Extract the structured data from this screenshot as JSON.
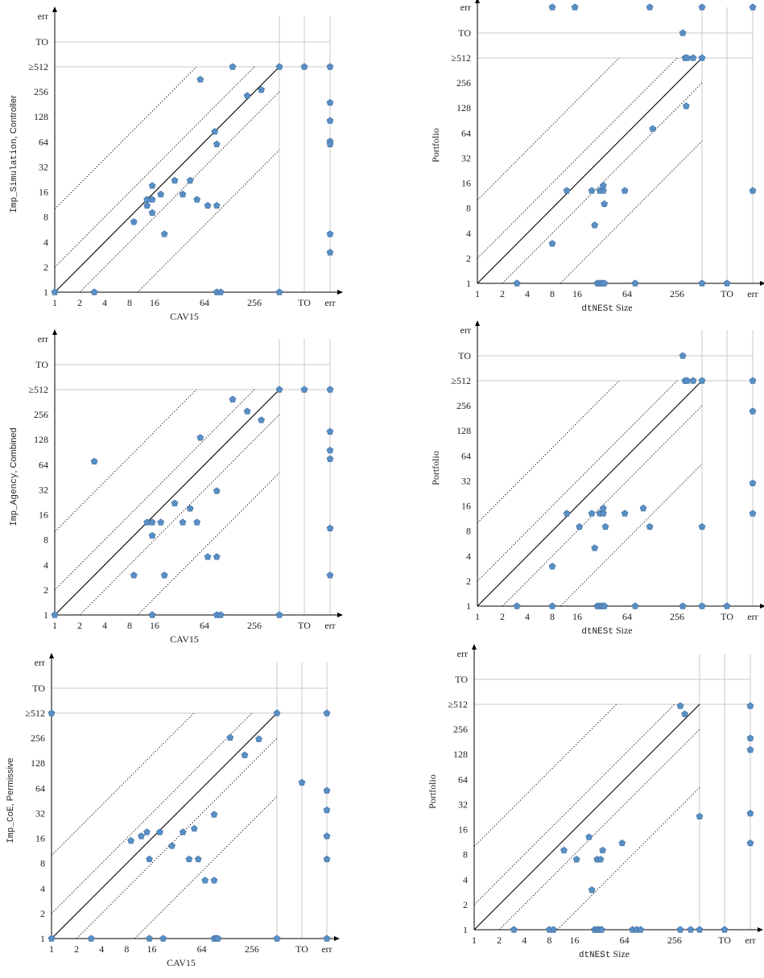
{
  "figure": {
    "common": {
      "tick_labels": [
        "1",
        "2",
        "4",
        "8",
        "16",
        "32",
        "64",
        "128",
        "256",
        "≥512",
        "TO",
        "err"
      ],
      "x_tick_labels": [
        "1",
        "2",
        "4",
        "8",
        "16",
        "64",
        "256",
        "TO",
        "err"
      ],
      "colors": {
        "marker": "#5a8fc6",
        "marker_edge": "#3f6f9f",
        "grid": "#c8c8c8",
        "diagonal": "#000000"
      },
      "marker_shape": "pentagon"
    }
  },
  "chart_data": [
    {
      "type": "scatter",
      "x_scale": "log2",
      "y_scale": "log2",
      "xlim": [
        1,
        1024
      ],
      "ylim": [
        1,
        1024
      ],
      "xlabel": "CAV15",
      "ylabel_parts": [
        {
          "text": "Imp_Simulation",
          "font": "mono"
        },
        {
          "text": ", Controller",
          "font": "sans"
        }
      ],
      "reference_lines": [
        "y = x",
        "y = 2x",
        "y = 10x",
        "y = x/2",
        "y = x/10"
      ],
      "points": [
        {
          "x": 1,
          "y": 1
        },
        {
          "x": 3,
          "y": 1
        },
        {
          "x": 90,
          "y": 1
        },
        {
          "x": 100,
          "y": 1
        },
        {
          "x": 512,
          "y": 1
        },
        {
          "x": 9,
          "y": 7
        },
        {
          "x": 13,
          "y": 11
        },
        {
          "x": 13,
          "y": 13
        },
        {
          "x": 15,
          "y": 13
        },
        {
          "x": 15,
          "y": 9
        },
        {
          "x": 15,
          "y": 19
        },
        {
          "x": 19,
          "y": 15
        },
        {
          "x": 21,
          "y": 5
        },
        {
          "x": 28,
          "y": 22
        },
        {
          "x": 35,
          "y": 15
        },
        {
          "x": 43,
          "y": 22
        },
        {
          "x": 52,
          "y": 13
        },
        {
          "x": 70,
          "y": 11
        },
        {
          "x": 90,
          "y": 11
        },
        {
          "x": 85,
          "y": 85
        },
        {
          "x": 90,
          "y": 60
        },
        {
          "x": 57,
          "y": 360
        },
        {
          "x": 140,
          "y": 512
        },
        {
          "x": 210,
          "y": 230
        },
        {
          "x": 310,
          "y": 270
        },
        {
          "x": 512,
          "y": 512
        },
        {
          "x": "TO",
          "y": 512
        },
        {
          "x": "err",
          "y": 512
        },
        {
          "x": "err",
          "y": 190
        },
        {
          "x": "err",
          "y": 115
        },
        {
          "x": "err",
          "y": 65
        },
        {
          "x": "err",
          "y": 60
        },
        {
          "x": "err",
          "y": 5
        },
        {
          "x": "err",
          "y": 3
        }
      ]
    },
    {
      "type": "scatter",
      "x_scale": "log2",
      "y_scale": "log2",
      "xlim": [
        1,
        1024
      ],
      "ylim": [
        1,
        1024
      ],
      "xlabel_parts": [
        {
          "text": "dtNESt",
          "font": "mono"
        },
        {
          "text": " Size",
          "font": "serif"
        }
      ],
      "ylabel_parts": [
        {
          "text": "Portfolio",
          "font": "serif"
        }
      ],
      "reference_lines": [
        "y = x",
        "y = 2x",
        "y = 10x",
        "y = x/2",
        "y = x/10"
      ],
      "points": [
        {
          "x": 8,
          "y": "err"
        },
        {
          "x": 15,
          "y": "err"
        },
        {
          "x": 120,
          "y": "err"
        },
        {
          "x": 512,
          "y": "err"
        },
        {
          "x": "err",
          "y": "err"
        },
        {
          "x": 300,
          "y": "TO"
        },
        {
          "x": 320,
          "y": 512
        },
        {
          "x": 340,
          "y": 512
        },
        {
          "x": 400,
          "y": 512
        },
        {
          "x": 512,
          "y": 512
        },
        {
          "x": 330,
          "y": 135
        },
        {
          "x": 130,
          "y": 72
        },
        {
          "x": 12,
          "y": 13
        },
        {
          "x": 24,
          "y": 13
        },
        {
          "x": 30,
          "y": 13
        },
        {
          "x": 33,
          "y": 13
        },
        {
          "x": 33,
          "y": 15
        },
        {
          "x": 34,
          "y": 9
        },
        {
          "x": 60,
          "y": 13
        },
        {
          "x": 26,
          "y": 5
        },
        {
          "x": 8,
          "y": 3
        },
        {
          "x": 3,
          "y": 1
        },
        {
          "x": 28,
          "y": 1
        },
        {
          "x": 30,
          "y": 1
        },
        {
          "x": 32,
          "y": 1
        },
        {
          "x": 34,
          "y": 1
        },
        {
          "x": 80,
          "y": 1
        },
        {
          "x": 512,
          "y": 1
        },
        {
          "x": "TO",
          "y": 1
        },
        {
          "x": "err",
          "y": 13
        }
      ]
    },
    {
      "type": "scatter",
      "x_scale": "log2",
      "y_scale": "log2",
      "xlim": [
        1,
        1024
      ],
      "ylim": [
        1,
        1024
      ],
      "xlabel": "CAV15",
      "ylabel_parts": [
        {
          "text": "Imp_Agency",
          "font": "mono"
        },
        {
          "text": ", Combined",
          "font": "sans"
        }
      ],
      "reference_lines": [
        "y = x",
        "y = 2x",
        "y = 10x",
        "y = x/2",
        "y = x/10"
      ],
      "points": [
        {
          "x": 1,
          "y": 1
        },
        {
          "x": 15,
          "y": 1
        },
        {
          "x": 90,
          "y": 1
        },
        {
          "x": 100,
          "y": 1
        },
        {
          "x": 512,
          "y": 1
        },
        {
          "x": 3,
          "y": 70
        },
        {
          "x": 9,
          "y": 3
        },
        {
          "x": 13,
          "y": 13
        },
        {
          "x": 15,
          "y": 13
        },
        {
          "x": 15,
          "y": 9
        },
        {
          "x": 19,
          "y": 13
        },
        {
          "x": 21,
          "y": 3
        },
        {
          "x": 28,
          "y": 22
        },
        {
          "x": 35,
          "y": 13
        },
        {
          "x": 43,
          "y": 19
        },
        {
          "x": 52,
          "y": 13
        },
        {
          "x": 70,
          "y": 5
        },
        {
          "x": 90,
          "y": 5
        },
        {
          "x": 90,
          "y": 31
        },
        {
          "x": 57,
          "y": 135
        },
        {
          "x": 140,
          "y": 390
        },
        {
          "x": 210,
          "y": 280
        },
        {
          "x": 310,
          "y": 220
        },
        {
          "x": 512,
          "y": 512
        },
        {
          "x": "TO",
          "y": 512
        },
        {
          "x": "err",
          "y": 512
        },
        {
          "x": "err",
          "y": 160
        },
        {
          "x": "err",
          "y": 95
        },
        {
          "x": "err",
          "y": 75
        },
        {
          "x": "err",
          "y": 11
        },
        {
          "x": "err",
          "y": 3
        }
      ]
    },
    {
      "type": "scatter",
      "x_scale": "log2",
      "y_scale": "log2",
      "xlim": [
        1,
        1024
      ],
      "ylim": [
        1,
        1024
      ],
      "xlabel_parts": [
        {
          "text": "dtNESt",
          "font": "mono"
        },
        {
          "text": " Size",
          "font": "serif"
        }
      ],
      "ylabel_parts": [
        {
          "text": "Portfolio",
          "font": "serif"
        }
      ],
      "reference_lines": [
        "y = x",
        "y = 2x",
        "y = 10x",
        "y = x/2",
        "y = x/10"
      ],
      "points": [
        {
          "x": 300,
          "y": "TO"
        },
        {
          "x": 320,
          "y": 512
        },
        {
          "x": 340,
          "y": 512
        },
        {
          "x": 400,
          "y": 512
        },
        {
          "x": 512,
          "y": 512
        },
        {
          "x": "err",
          "y": 512
        },
        {
          "x": "err",
          "y": 220
        },
        {
          "x": "err",
          "y": 30
        },
        {
          "x": "err",
          "y": 13
        },
        {
          "x": 12,
          "y": 13
        },
        {
          "x": 17,
          "y": 9
        },
        {
          "x": 24,
          "y": 13
        },
        {
          "x": 30,
          "y": 13
        },
        {
          "x": 33,
          "y": 13
        },
        {
          "x": 33,
          "y": 15
        },
        {
          "x": 35,
          "y": 9
        },
        {
          "x": 60,
          "y": 13
        },
        {
          "x": 100,
          "y": 15
        },
        {
          "x": 120,
          "y": 9
        },
        {
          "x": 512,
          "y": 9
        },
        {
          "x": 26,
          "y": 5
        },
        {
          "x": 8,
          "y": 3
        },
        {
          "x": 3,
          "y": 1
        },
        {
          "x": 8,
          "y": 1
        },
        {
          "x": 28,
          "y": 1
        },
        {
          "x": 30,
          "y": 1
        },
        {
          "x": 32,
          "y": 1
        },
        {
          "x": 34,
          "y": 1
        },
        {
          "x": 80,
          "y": 1
        },
        {
          "x": 300,
          "y": 1
        },
        {
          "x": 512,
          "y": 1
        },
        {
          "x": "TO",
          "y": 1
        }
      ]
    },
    {
      "type": "scatter",
      "x_scale": "log2",
      "y_scale": "log2",
      "xlim": [
        1,
        1024
      ],
      "ylim": [
        1,
        1024
      ],
      "xlabel": "CAV15",
      "ylabel_parts": [
        {
          "text": "Imp_CoE",
          "font": "mono"
        },
        {
          "text": ", Permissive",
          "font": "sans"
        }
      ],
      "reference_lines": [
        "y = x",
        "y = 2x",
        "y = 10x",
        "y = x/2",
        "y = x/10"
      ],
      "points": [
        {
          "x": 1,
          "y": 1
        },
        {
          "x": 1,
          "y": 512
        },
        {
          "x": 3,
          "y": 1
        },
        {
          "x": 15,
          "y": 1
        },
        {
          "x": 22,
          "y": 1
        },
        {
          "x": 90,
          "y": 1
        },
        {
          "x": 95,
          "y": 1
        },
        {
          "x": 100,
          "y": 1
        },
        {
          "x": 512,
          "y": 1
        },
        {
          "x": 9,
          "y": 15
        },
        {
          "x": 12,
          "y": 17
        },
        {
          "x": 14,
          "y": 19
        },
        {
          "x": 15,
          "y": 9
        },
        {
          "x": 20,
          "y": 19
        },
        {
          "x": 28,
          "y": 13
        },
        {
          "x": 38,
          "y": 19
        },
        {
          "x": 52,
          "y": 21
        },
        {
          "x": 45,
          "y": 9
        },
        {
          "x": 58,
          "y": 9
        },
        {
          "x": 70,
          "y": 5
        },
        {
          "x": 90,
          "y": 5
        },
        {
          "x": 90,
          "y": 31
        },
        {
          "x": 140,
          "y": 260
        },
        {
          "x": 210,
          "y": 160
        },
        {
          "x": 310,
          "y": 250
        },
        {
          "x": 512,
          "y": 512
        },
        {
          "x": "TO",
          "y": 75
        },
        {
          "x": "err",
          "y": 512
        },
        {
          "x": "err",
          "y": 60
        },
        {
          "x": "err",
          "y": 35
        },
        {
          "x": "err",
          "y": 17
        },
        {
          "x": "err",
          "y": 9
        },
        {
          "x": "err",
          "y": 1
        }
      ]
    },
    {
      "type": "scatter",
      "x_scale": "log2",
      "y_scale": "log2",
      "xlim": [
        1,
        1024
      ],
      "ylim": [
        1,
        1024
      ],
      "xlabel_parts": [
        {
          "text": "dtNESt",
          "font": "mono"
        },
        {
          "text": " Size",
          "font": "serif"
        }
      ],
      "ylabel_parts": [
        {
          "text": "Portfolio",
          "font": "serif"
        }
      ],
      "reference_lines": [
        "y = x",
        "y = 2x",
        "y = 10x",
        "y = x/2",
        "y = x/10"
      ],
      "points": [
        {
          "x": 300,
          "y": 490
        },
        {
          "x": 340,
          "y": 390
        },
        {
          "x": 512,
          "y": 23
        },
        {
          "x": "err",
          "y": 490
        },
        {
          "x": "err",
          "y": 200
        },
        {
          "x": "err",
          "y": 145
        },
        {
          "x": "err",
          "y": 25
        },
        {
          "x": "err",
          "y": 11
        },
        {
          "x": 12,
          "y": 9
        },
        {
          "x": 17,
          "y": 7
        },
        {
          "x": 24,
          "y": 13
        },
        {
          "x": 30,
          "y": 7
        },
        {
          "x": 33,
          "y": 7
        },
        {
          "x": 35,
          "y": 9
        },
        {
          "x": 60,
          "y": 11
        },
        {
          "x": 26,
          "y": 3
        },
        {
          "x": 3,
          "y": 1
        },
        {
          "x": 8,
          "y": 1
        },
        {
          "x": 9,
          "y": 1
        },
        {
          "x": 28,
          "y": 1
        },
        {
          "x": 30,
          "y": 1
        },
        {
          "x": 32,
          "y": 1
        },
        {
          "x": 34,
          "y": 1
        },
        {
          "x": 80,
          "y": 1
        },
        {
          "x": 90,
          "y": 1
        },
        {
          "x": 100,
          "y": 1
        },
        {
          "x": 300,
          "y": 1
        },
        {
          "x": 400,
          "y": 1
        },
        {
          "x": 512,
          "y": 1
        },
        {
          "x": "TO",
          "y": 1
        }
      ]
    }
  ]
}
